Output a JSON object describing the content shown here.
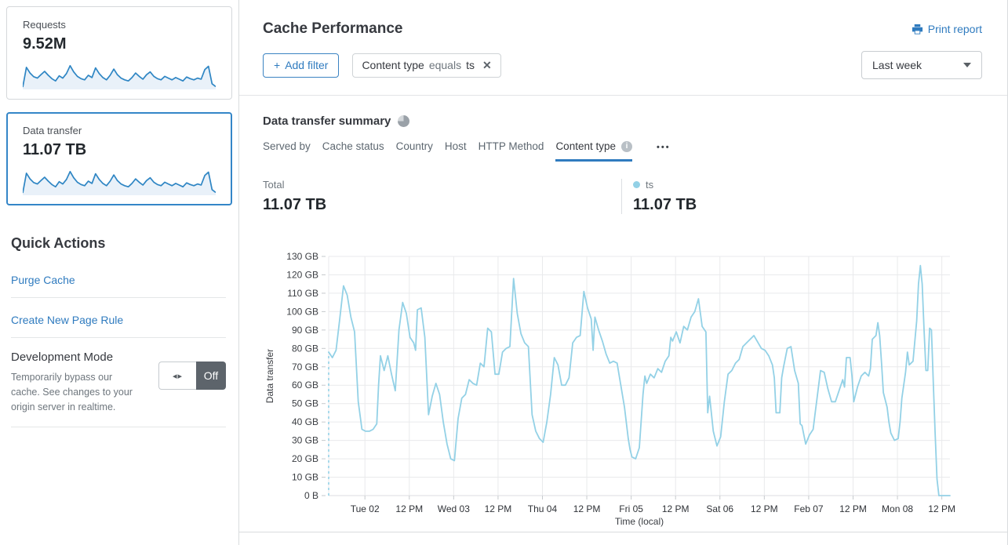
{
  "colors": {
    "accent": "#2f7bbf",
    "card_border_selected": "#3486c8",
    "sparkline": "#2f86c4",
    "sparkline_fill": "#e9f1f9",
    "chart_line": "#93d1e6",
    "grid": "#e9eaec"
  },
  "sidebar": {
    "requests_card": {
      "label": "Requests",
      "value": "9.52M"
    },
    "data_transfer_card": {
      "label": "Data transfer",
      "value": "11.07 TB"
    },
    "sparkline_values": [
      8,
      78,
      58,
      45,
      40,
      52,
      64,
      50,
      38,
      30,
      48,
      40,
      56,
      84,
      62,
      46,
      38,
      34,
      50,
      42,
      76,
      56,
      42,
      34,
      50,
      72,
      52,
      40,
      34,
      30,
      42,
      58,
      46,
      36,
      52,
      62,
      46,
      38,
      34,
      46,
      40,
      34,
      42,
      36,
      30,
      44,
      38,
      34,
      40,
      36,
      70,
      82,
      20,
      10
    ],
    "quick_actions": {
      "title": "Quick Actions",
      "links": [
        "Purge Cache",
        "Create New Page Rule"
      ],
      "dev_mode": {
        "title": "Development Mode",
        "description": "Temporarily bypass our cache. See changes to your origin server in realtime.",
        "toggle_state": "Off",
        "toggle_arrows": "◂▸"
      }
    }
  },
  "header": {
    "title": "Cache Performance",
    "print_label": "Print report",
    "add_filter": {
      "plus": "+",
      "label": "Add filter"
    },
    "filter_chip": {
      "field": "Content type",
      "operator": "equals",
      "value": "ts",
      "close": "✕"
    },
    "time_range_selected": "Last week"
  },
  "summary": {
    "title": "Data transfer summary",
    "tabs": [
      {
        "label": "Served by"
      },
      {
        "label": "Cache status"
      },
      {
        "label": "Country"
      },
      {
        "label": "Host"
      },
      {
        "label": "HTTP Method"
      },
      {
        "label": "Content type",
        "selected": true,
        "has_info": true
      }
    ],
    "more": "•••",
    "total": {
      "label": "Total",
      "value": "11.07 TB"
    },
    "legend": {
      "label": "ts",
      "value": "11.07 TB",
      "color": "#93d1e6"
    }
  },
  "chart_data": {
    "type": "line",
    "title": "Data transfer summary",
    "ylabel": "Data transfer",
    "xlabel": "Time (local)",
    "unit": "GB",
    "ylim_gb": [
      0,
      130
    ],
    "yticks": [
      "0 B",
      "10 GB",
      "20 GB",
      "30 GB",
      "40 GB",
      "50 GB",
      "60 GB",
      "70 GB",
      "80 GB",
      "90 GB",
      "100 GB",
      "110 GB",
      "120 GB",
      "130 GB"
    ],
    "xticks": [
      "Tue 02",
      "12 PM",
      "Wed 03",
      "12 PM",
      "Thu 04",
      "12 PM",
      "Fri 05",
      "12 PM",
      "Sat 06",
      "12 PM",
      "Feb 07",
      "12 PM",
      "Mon 08",
      "12 PM"
    ],
    "tick_start_hour": 9.8,
    "tick_interval_hours": 12,
    "total_hours": 168,
    "grid": true,
    "leading_dashed_from_zero": true,
    "series": [
      {
        "name": "ts",
        "color": "#93d1e6",
        "points": [
          [
            0,
            78
          ],
          [
            1,
            75
          ],
          [
            2,
            79
          ],
          [
            3,
            96
          ],
          [
            4,
            114
          ],
          [
            5,
            109
          ],
          [
            6,
            97
          ],
          [
            7,
            89
          ],
          [
            8,
            51
          ],
          [
            9,
            36
          ],
          [
            10,
            35
          ],
          [
            11,
            35
          ],
          [
            12,
            36
          ],
          [
            13,
            39
          ],
          [
            13.5,
            60
          ],
          [
            14,
            76
          ],
          [
            15,
            68
          ],
          [
            16,
            76
          ],
          [
            17,
            66
          ],
          [
            18,
            57
          ],
          [
            19,
            90
          ],
          [
            20,
            105
          ],
          [
            21,
            99
          ],
          [
            22,
            86
          ],
          [
            23,
            83
          ],
          [
            23.5,
            79
          ],
          [
            24,
            101
          ],
          [
            25,
            102
          ],
          [
            26,
            86
          ],
          [
            27,
            44
          ],
          [
            28,
            54
          ],
          [
            29,
            61
          ],
          [
            30,
            55
          ],
          [
            31,
            40
          ],
          [
            32,
            28
          ],
          [
            33,
            20
          ],
          [
            34,
            19
          ],
          [
            35,
            42
          ],
          [
            36,
            53
          ],
          [
            37,
            55
          ],
          [
            38,
            63
          ],
          [
            39,
            61
          ],
          [
            40,
            60
          ],
          [
            41,
            72
          ],
          [
            42,
            70
          ],
          [
            43,
            91
          ],
          [
            44,
            89
          ],
          [
            45,
            66
          ],
          [
            46,
            66
          ],
          [
            47,
            78
          ],
          [
            48,
            80
          ],
          [
            49,
            81
          ],
          [
            50,
            118
          ],
          [
            51,
            99
          ],
          [
            52,
            88
          ],
          [
            53,
            83
          ],
          [
            54,
            81
          ],
          [
            55,
            44
          ],
          [
            56,
            35
          ],
          [
            57,
            31
          ],
          [
            58,
            29
          ],
          [
            59,
            40
          ],
          [
            60,
            55
          ],
          [
            61,
            75
          ],
          [
            62,
            71
          ],
          [
            63,
            60
          ],
          [
            64,
            60
          ],
          [
            65,
            64
          ],
          [
            66,
            83
          ],
          [
            67,
            86
          ],
          [
            68,
            87
          ],
          [
            69,
            111
          ],
          [
            70,
            102
          ],
          [
            71,
            96
          ],
          [
            71.5,
            79
          ],
          [
            72,
            97
          ],
          [
            73,
            90
          ],
          [
            74,
            84
          ],
          [
            75,
            77
          ],
          [
            76,
            72
          ],
          [
            77,
            73
          ],
          [
            78,
            72
          ],
          [
            79,
            60
          ],
          [
            80,
            48
          ],
          [
            81,
            31
          ],
          [
            81.5,
            25
          ],
          [
            82,
            21
          ],
          [
            83,
            20
          ],
          [
            84,
            26
          ],
          [
            85,
            55
          ],
          [
            85.5,
            65
          ],
          [
            86,
            61
          ],
          [
            87,
            66
          ],
          [
            88,
            64
          ],
          [
            89,
            69
          ],
          [
            90,
            67
          ],
          [
            91,
            73
          ],
          [
            92,
            76
          ],
          [
            92.5,
            86
          ],
          [
            93,
            84
          ],
          [
            94,
            89
          ],
          [
            95,
            83
          ],
          [
            96,
            92
          ],
          [
            97,
            90
          ],
          [
            98,
            97
          ],
          [
            99,
            100
          ],
          [
            100,
            107
          ],
          [
            101,
            92
          ],
          [
            102,
            89
          ],
          [
            102.5,
            45
          ],
          [
            103,
            54
          ],
          [
            104,
            35
          ],
          [
            105,
            27
          ],
          [
            106,
            32
          ],
          [
            107,
            51
          ],
          [
            108,
            66
          ],
          [
            109,
            68
          ],
          [
            110,
            72
          ],
          [
            111,
            74
          ],
          [
            112,
            81
          ],
          [
            113,
            83
          ],
          [
            115,
            87
          ],
          [
            117,
            80
          ],
          [
            118,
            79
          ],
          [
            119,
            76
          ],
          [
            120,
            71
          ],
          [
            120.5,
            64
          ],
          [
            121,
            45
          ],
          [
            122,
            45
          ],
          [
            122.5,
            64
          ],
          [
            123,
            70
          ],
          [
            124,
            80
          ],
          [
            125,
            81
          ],
          [
            126,
            68
          ],
          [
            127,
            61
          ],
          [
            127.5,
            39
          ],
          [
            128,
            38
          ],
          [
            129,
            28
          ],
          [
            130,
            33
          ],
          [
            131,
            36
          ],
          [
            131.5,
            44
          ],
          [
            132,
            52
          ],
          [
            133,
            68
          ],
          [
            134,
            67
          ],
          [
            135,
            58
          ],
          [
            136,
            51
          ],
          [
            137,
            51
          ],
          [
            138,
            57
          ],
          [
            139,
            63
          ],
          [
            139.5,
            59
          ],
          [
            140,
            75
          ],
          [
            141,
            75
          ],
          [
            141.5,
            65
          ],
          [
            142,
            51
          ],
          [
            143,
            59
          ],
          [
            144,
            65
          ],
          [
            145,
            67
          ],
          [
            146,
            65
          ],
          [
            146.5,
            69
          ],
          [
            147,
            85
          ],
          [
            148,
            87
          ],
          [
            148.5,
            94
          ],
          [
            149,
            87
          ],
          [
            149.5,
            72
          ],
          [
            150,
            56
          ],
          [
            151,
            48
          ],
          [
            151.5,
            40
          ],
          [
            152,
            34
          ],
          [
            153,
            30
          ],
          [
            154,
            31
          ],
          [
            154.5,
            40
          ],
          [
            155,
            53
          ],
          [
            156,
            67
          ],
          [
            156.5,
            78
          ],
          [
            157,
            71
          ],
          [
            158,
            73
          ],
          [
            159,
            95
          ],
          [
            159.5,
            115
          ],
          [
            160,
            125
          ],
          [
            160.5,
            115
          ],
          [
            161,
            90
          ],
          [
            161.5,
            68
          ],
          [
            162,
            68
          ],
          [
            162.5,
            91
          ],
          [
            163,
            90
          ],
          [
            163.5,
            61
          ],
          [
            164,
            34
          ],
          [
            164.5,
            9
          ],
          [
            165,
            0
          ],
          [
            168,
            0
          ]
        ]
      }
    ]
  }
}
